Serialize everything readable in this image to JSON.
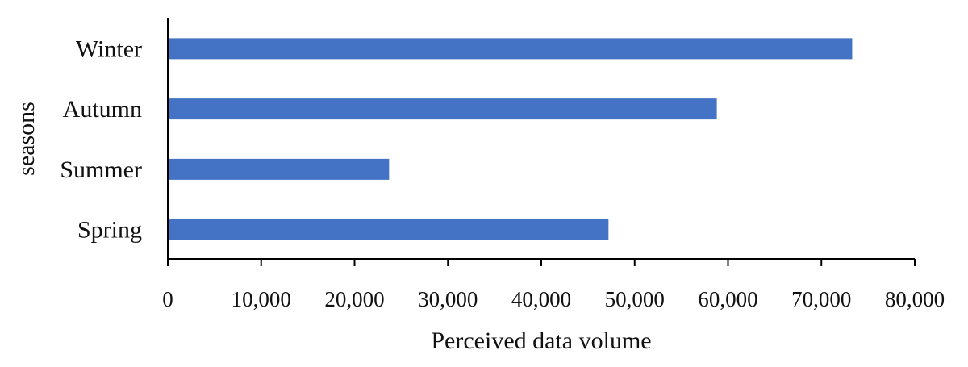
{
  "chart_data": {
    "type": "bar",
    "orientation": "horizontal",
    "title": "",
    "xlabel": "Perceived data volume",
    "ylabel": "seasons",
    "categories": [
      "Spring",
      "Summer",
      "Autumn",
      "Winter"
    ],
    "values": [
      47200,
      23700,
      58800,
      73300
    ],
    "xlim": [
      0,
      80000
    ],
    "xticks": [
      0,
      10000,
      20000,
      30000,
      40000,
      50000,
      60000,
      70000,
      80000
    ],
    "xtick_labels": [
      "0",
      "10,000",
      "20,000",
      "30,000",
      "40,000",
      "50,000",
      "60,000",
      "70,000",
      "80,000"
    ],
    "bar_color": "#4472C4",
    "grid": false,
    "legend": "none"
  }
}
